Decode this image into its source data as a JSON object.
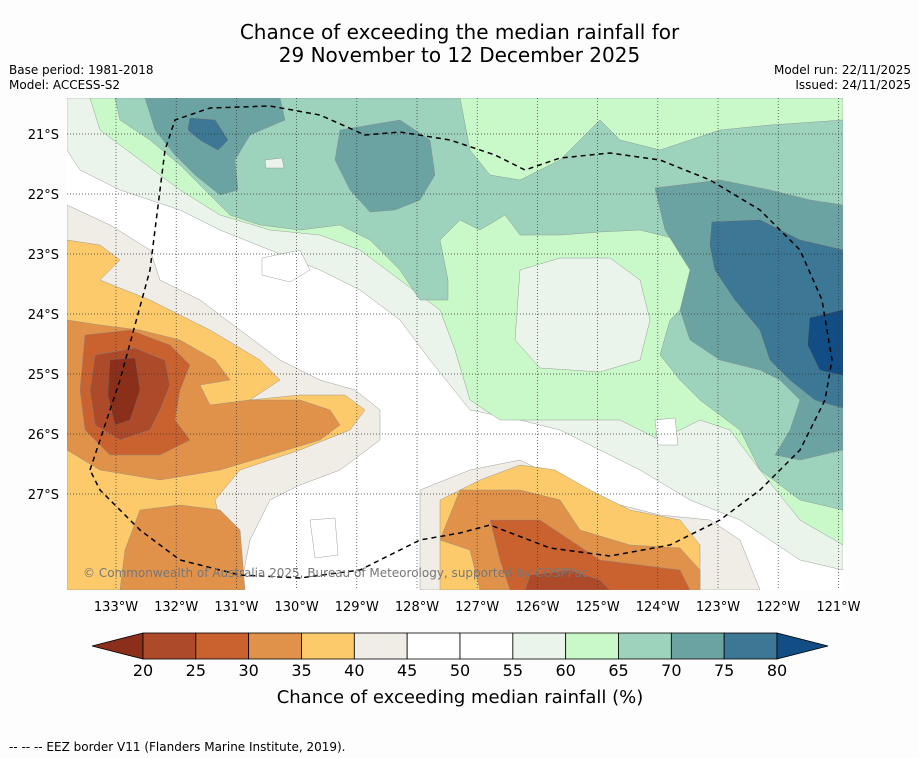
{
  "title": {
    "line1": "Chance of exceeding the median rainfall for",
    "line2": "29 November to 12 December 2025"
  },
  "meta": {
    "base_period": "Base period: 1981-2018",
    "model": "Model: ACCESS-S2",
    "model_run": "Model run: 22/11/2025",
    "issued": "Issued: 24/11/2025"
  },
  "axes": {
    "lon_labels": [
      "133°W",
      "132°W",
      "131°W",
      "130°W",
      "129°W",
      "128°W",
      "127°W",
      "126°W",
      "125°W",
      "124°W",
      "123°W",
      "122°W",
      "121°W"
    ],
    "lat_labels": [
      "21°S",
      "22°S",
      "23°S",
      "24°S",
      "25°S",
      "26°S",
      "27°S"
    ]
  },
  "copyright": "© Commonwealth of Australia 2025, Bureau of Meteorology, supported by COSPPac",
  "colorbar": {
    "ticks": [
      "20",
      "25",
      "30",
      "35",
      "40",
      "45",
      "50",
      "55",
      "60",
      "65",
      "70",
      "75",
      "80"
    ],
    "colors": [
      "#ad4a2a",
      "#c9622f",
      "#e1924a",
      "#fdca6b",
      "#f0ece6",
      "#ffffff",
      "#ffffff",
      "#eaf4ea",
      "#c9f9c9",
      "#9dd2bc",
      "#6ba3a3",
      "#3d7796"
    ],
    "under_color": "#8b2f1a",
    "over_color": "#124d86",
    "label": "Chance of exceeding median rainfall (%)"
  },
  "footer": "--  --  -- EEZ border V11 (Flanders Marine Institute, 2019)."
}
